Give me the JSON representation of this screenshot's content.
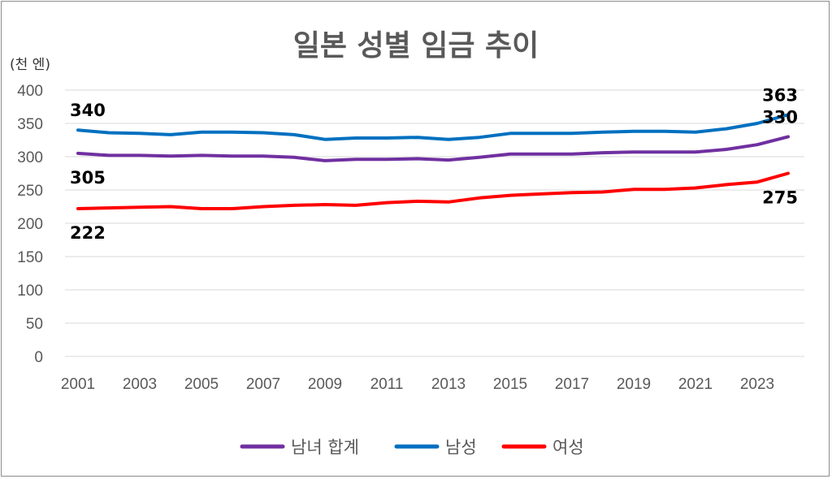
{
  "chart_data": {
    "type": "line",
    "title": "일본 성별 임금 추이",
    "unit_label": "(천 엔)",
    "xlabel": "",
    "ylabel": "",
    "ylim": [
      0,
      400
    ],
    "y_ticks": [
      0,
      50,
      100,
      150,
      200,
      250,
      300,
      350,
      400
    ],
    "x": [
      2001,
      2002,
      2003,
      2004,
      2005,
      2006,
      2007,
      2008,
      2009,
      2010,
      2011,
      2012,
      2013,
      2014,
      2015,
      2016,
      2017,
      2018,
      2019,
      2020,
      2021,
      2022,
      2023,
      2024
    ],
    "x_tick_labels": [
      "2001",
      "2003",
      "2005",
      "2007",
      "2009",
      "2011",
      "2013",
      "2015",
      "2017",
      "2019",
      "2021",
      "2023"
    ],
    "grid": true,
    "legend_position": "bottom",
    "series": [
      {
        "name": "남녀 합계",
        "color": "#7030a0",
        "values": [
          305,
          302,
          302,
          301,
          302,
          301,
          301,
          299,
          294,
          296,
          296,
          297,
          295,
          299,
          304,
          304,
          304,
          306,
          307,
          307,
          307,
          311,
          318,
          330
        ],
        "labels": [
          {
            "index": 0,
            "text": "305",
            "pos": "below"
          },
          {
            "index": 23,
            "text": "330",
            "pos": "above"
          }
        ]
      },
      {
        "name": "남성",
        "color": "#0070c0",
        "values": [
          340,
          336,
          335,
          333,
          337,
          337,
          336,
          333,
          326,
          328,
          328,
          329,
          326,
          329,
          335,
          335,
          335,
          337,
          338,
          338,
          337,
          342,
          350,
          363
        ],
        "labels": [
          {
            "index": 0,
            "text": "340",
            "pos": "above"
          },
          {
            "index": 23,
            "text": "363",
            "pos": "above"
          }
        ]
      },
      {
        "name": "여성",
        "color": "#ff0000",
        "values": [
          222,
          223,
          224,
          225,
          222,
          222,
          225,
          227,
          228,
          227,
          231,
          233,
          232,
          238,
          242,
          244,
          246,
          247,
          251,
          251,
          253,
          258,
          262,
          275
        ],
        "labels": [
          {
            "index": 0,
            "text": "222",
            "pos": "below"
          },
          {
            "index": 23,
            "text": "275",
            "pos": "below"
          }
        ]
      }
    ]
  }
}
